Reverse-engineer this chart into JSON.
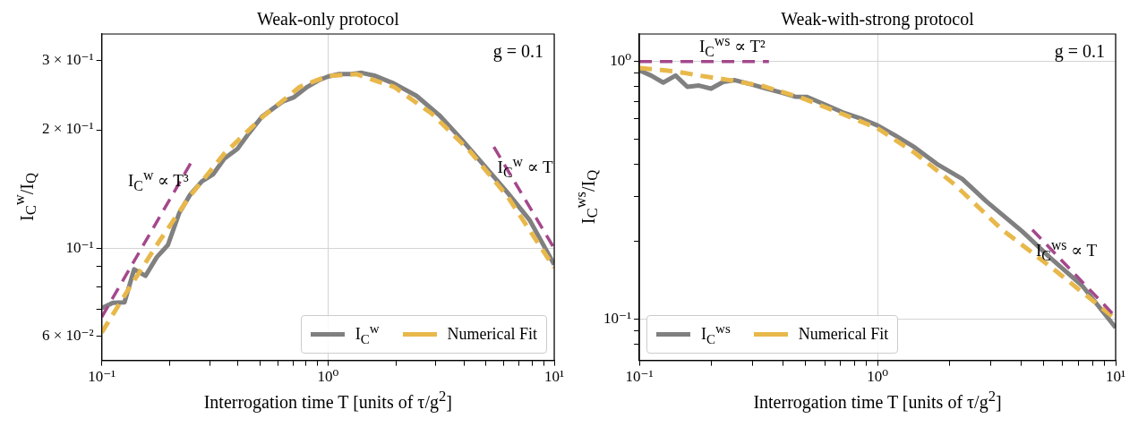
{
  "chart_data": [
    {
      "type": "line",
      "title": "Weak-only protocol",
      "xlabel": "Interrogation time T [units of τ/g$^{2}$]",
      "ylabel": "I$_{C}$$^{w}$/I$_{Q}$",
      "log": "xy",
      "grid": true,
      "legend": "bottom right",
      "xlim": [
        0.1,
        10
      ],
      "ylim": [
        0.052,
        0.35
      ],
      "xticks": [
        {
          "value": 0.1,
          "label": "10⁻¹"
        },
        {
          "value": 0.2,
          "label": null
        },
        {
          "value": 0.3,
          "label": null
        },
        {
          "value": 0.4,
          "label": null
        },
        {
          "value": 0.5,
          "label": null
        },
        {
          "value": 0.6,
          "label": null
        },
        {
          "value": 0.7,
          "label": null
        },
        {
          "value": 0.8,
          "label": null
        },
        {
          "value": 0.9,
          "label": null
        },
        {
          "value": 1,
          "label": "10⁰"
        },
        {
          "value": 2,
          "label": null
        },
        {
          "value": 3,
          "label": null
        },
        {
          "value": 4,
          "label": null
        },
        {
          "value": 5,
          "label": null
        },
        {
          "value": 6,
          "label": null
        },
        {
          "value": 7,
          "label": null
        },
        {
          "value": 8,
          "label": null
        },
        {
          "value": 9,
          "label": null
        },
        {
          "value": 10,
          "label": "10¹"
        }
      ],
      "yticks": [
        {
          "value": 0.06,
          "label": "6 × 10⁻²"
        },
        {
          "value": 0.07,
          "label": null
        },
        {
          "value": 0.08,
          "label": null
        },
        {
          "value": 0.09,
          "label": null
        },
        {
          "value": 0.1,
          "label": "10⁻¹"
        },
        {
          "value": 0.2,
          "label": "2 × 10⁻¹"
        },
        {
          "value": 0.3,
          "label": "3 × 10⁻¹"
        }
      ],
      "annotations": [
        "g = 0.1",
        {
          "text": "I$_{C}$$^{w}$ ∝ T³",
          "x": 0.251,
          "y": 0.167
        },
        {
          "text": "I$_{C}$$^{w}$ ∝ T",
          "x": 5.41,
          "y": 0.181
        }
      ],
      "series": [
        {
          "name": "I$_{C}$$^{w}$",
          "color": "#808080",
          "line_style": "solid",
          "x": [
            0.1,
            0.112,
            0.126,
            0.139,
            0.156,
            0.175,
            0.196,
            0.22,
            0.246,
            0.277,
            0.31,
            0.348,
            0.398,
            0.447,
            0.511,
            0.631,
            0.708,
            0.81,
            0.908,
            1.0,
            1.12,
            1.26,
            1.41,
            1.62,
            1.96,
            2.46,
            3.1,
            3.9,
            4.92,
            6.19,
            7.79,
            10
          ],
          "values": [
            0.0706,
            0.0728,
            0.073,
            0.0885,
            0.0852,
            0.095,
            0.102,
            0.123,
            0.137,
            0.148,
            0.154,
            0.169,
            0.179,
            0.196,
            0.216,
            0.236,
            0.242,
            0.257,
            0.267,
            0.273,
            0.277,
            0.277,
            0.279,
            0.274,
            0.262,
            0.244,
            0.218,
            0.189,
            0.162,
            0.139,
            0.118,
            0.091
          ]
        },
        {
          "name": "Numerical Fit",
          "color": "#e8b84b",
          "line_style": "dashed",
          "x": [
            0.1,
            0.133,
            0.181,
            0.246,
            0.348,
            0.511,
            0.75,
            1.0,
            1.33,
            1.96,
            2.87,
            4.22,
            6.19,
            10
          ],
          "values": [
            0.0612,
            0.0798,
            0.105,
            0.136,
            0.174,
            0.215,
            0.257,
            0.274,
            0.277,
            0.257,
            0.22,
            0.177,
            0.136,
            0.0894
          ]
        },
        {
          "color": "#a4488c",
          "line_style": "dashed",
          "x": [
            0.1,
            0.251
          ],
          "values": [
            0.067,
            0.167
          ]
        },
        {
          "color": "#a4488c",
          "line_style": "dashed",
          "x": [
            5.41,
            10
          ],
          "values": [
            0.181,
            0.1
          ]
        }
      ]
    },
    {
      "type": "line",
      "title": "Weak-with-strong protocol",
      "xlabel": "Interrogation time T [units of τ/g$^{2}$]",
      "ylabel": "I$_{C}$$^{ws}$/I$_{Q}$",
      "log": "xy",
      "grid": true,
      "legend": "bottom left",
      "xlim": [
        0.1,
        10
      ],
      "ylim": [
        0.069,
        1.28
      ],
      "xticks": [
        {
          "value": 0.1,
          "label": "10⁻¹"
        },
        {
          "value": 0.2,
          "label": null
        },
        {
          "value": 0.3,
          "label": null
        },
        {
          "value": 0.4,
          "label": null
        },
        {
          "value": 0.5,
          "label": null
        },
        {
          "value": 0.6,
          "label": null
        },
        {
          "value": 0.7,
          "label": null
        },
        {
          "value": 0.8,
          "label": null
        },
        {
          "value": 0.9,
          "label": null
        },
        {
          "value": 1,
          "label": "10⁰"
        },
        {
          "value": 2,
          "label": null
        },
        {
          "value": 3,
          "label": null
        },
        {
          "value": 4,
          "label": null
        },
        {
          "value": 5,
          "label": null
        },
        {
          "value": 6,
          "label": null
        },
        {
          "value": 7,
          "label": null
        },
        {
          "value": 8,
          "label": null
        },
        {
          "value": 9,
          "label": null
        },
        {
          "value": 10,
          "label": "10¹"
        }
      ],
      "yticks": [
        {
          "value": 0.08,
          "label": null
        },
        {
          "value": 0.09,
          "label": null
        },
        {
          "value": 0.1,
          "label": "10⁻¹"
        },
        {
          "value": 0.2,
          "label": null
        },
        {
          "value": 0.3,
          "label": null
        },
        {
          "value": 0.4,
          "label": null
        },
        {
          "value": 0.5,
          "label": null
        },
        {
          "value": 0.6,
          "label": null
        },
        {
          "value": 0.7,
          "label": null
        },
        {
          "value": 0.8,
          "label": null
        },
        {
          "value": 0.9,
          "label": null
        },
        {
          "value": 1,
          "label": "10⁰"
        }
      ],
      "annotations": [
        "g = 0.1",
        {
          "text": "I$_{C}$$^{ws}$ ∝ T²",
          "x": 0.35,
          "y": 1.0
        },
        {
          "text": "I$_{C}$$^{ws}$ ∝ T",
          "x": 4.47,
          "y": 0.222
        }
      ],
      "series": [
        {
          "name": "I$_{C}$$^{ws}$",
          "color": "#808080",
          "line_style": "solid",
          "x": [
            0.1,
            0.112,
            0.126,
            0.142,
            0.159,
            0.178,
            0.2,
            0.225,
            0.252,
            0.294,
            0.343,
            0.401,
            0.45,
            0.506,
            0.613,
            0.715,
            0.867,
            1.0,
            1.18,
            1.43,
            1.8,
            2.27,
            2.87,
            4.05,
            5.31,
            7.22,
            10
          ],
          "values": [
            0.925,
            0.883,
            0.829,
            0.883,
            0.798,
            0.807,
            0.785,
            0.834,
            0.847,
            0.816,
            0.785,
            0.755,
            0.731,
            0.729,
            0.676,
            0.635,
            0.597,
            0.565,
            0.518,
            0.465,
            0.397,
            0.35,
            0.286,
            0.219,
            0.173,
            0.135,
            0.0925
          ]
        },
        {
          "name": "Numerical Fit",
          "color": "#e8b84b",
          "line_style": "dashed",
          "x": [
            0.1,
            0.142,
            0.178,
            0.234,
            0.33,
            0.486,
            0.715,
            1.0,
            1.43,
            2.1,
            3.34,
            5.31,
            10
          ],
          "values": [
            0.945,
            0.916,
            0.883,
            0.85,
            0.803,
            0.72,
            0.625,
            0.551,
            0.443,
            0.334,
            0.222,
            0.16,
            0.1
          ]
        },
        {
          "color": "#a4488c",
          "line_style": "dashed",
          "x": [
            0.1,
            0.35
          ],
          "values": [
            1.0,
            1.0
          ]
        },
        {
          "color": "#a4488c",
          "line_style": "dashed",
          "x": [
            4.47,
            10
          ],
          "values": [
            0.222,
            0.102
          ]
        }
      ]
    }
  ]
}
